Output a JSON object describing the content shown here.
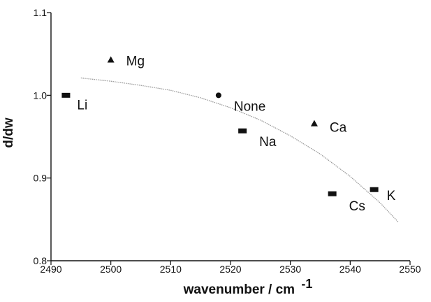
{
  "chart_data": {
    "type": "scatter",
    "xlabel": "wavenumber / cm",
    "xlabel_superscript": "-1",
    "ylabel": "d/dw",
    "xlim": [
      2490,
      2550
    ],
    "ylim": [
      0.8,
      1.1
    ],
    "x_ticks": [
      "2490",
      "2500",
      "2510",
      "2520",
      "2530",
      "2540",
      "2550"
    ],
    "y_ticks": [
      "0.8",
      "0.9",
      "1.0",
      "1.1"
    ],
    "grid": false,
    "points": [
      {
        "label": "Li",
        "x": 2492.5,
        "y": 1.0,
        "marker": "square"
      },
      {
        "label": "Mg",
        "x": 2500.0,
        "y": 1.043,
        "marker": "triangle"
      },
      {
        "label": "None",
        "x": 2518.0,
        "y": 1.0,
        "marker": "circle"
      },
      {
        "label": "Na",
        "x": 2522.0,
        "y": 0.957,
        "marker": "square"
      },
      {
        "label": "Ca",
        "x": 2534.0,
        "y": 0.966,
        "marker": "triangle"
      },
      {
        "label": "Cs",
        "x": 2537.0,
        "y": 0.881,
        "marker": "square"
      },
      {
        "label": "K",
        "x": 2544.0,
        "y": 0.886,
        "marker": "square"
      }
    ],
    "fit_curve": {
      "x": [
        2495,
        2500,
        2505,
        2510,
        2515,
        2520,
        2525,
        2530,
        2535,
        2540,
        2545,
        2548
      ],
      "y": [
        1.021,
        1.017,
        1.012,
        1.006,
        0.997,
        0.985,
        0.97,
        0.951,
        0.929,
        0.902,
        0.87,
        0.847
      ]
    }
  }
}
